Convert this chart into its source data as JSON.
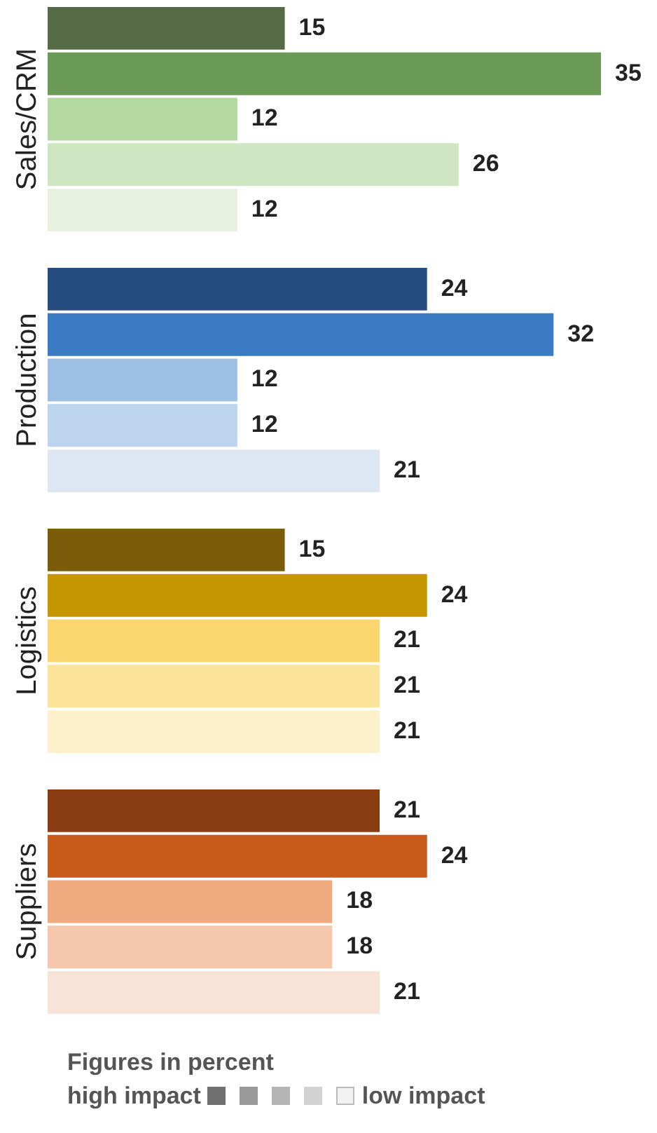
{
  "chart_data": [
    {
      "type": "bar",
      "orientation": "horizontal",
      "ylabel": "Sales/CRM",
      "categories": [
        null,
        null,
        null,
        null,
        null
      ],
      "values": [
        15,
        35,
        12,
        26,
        12
      ],
      "colors": [
        "#556b45",
        "#6a9a55",
        "#b3d8a0",
        "#cfe6c3",
        "#e6f2df"
      ],
      "tick_labels": false,
      "data_labels": true
    },
    {
      "type": "bar",
      "orientation": "horizontal",
      "ylabel": "Production",
      "categories": [
        null,
        null,
        null,
        null,
        null
      ],
      "values": [
        24,
        32,
        12,
        12,
        21
      ],
      "colors": [
        "#264d80",
        "#3b7bc4",
        "#9dbfe3",
        "#bdd4ee",
        "#dde7f3"
      ],
      "tick_labels": false,
      "data_labels": true
    },
    {
      "type": "bar",
      "orientation": "horizontal",
      "ylabel": "Logistics",
      "categories": [
        null,
        null,
        null,
        null,
        null
      ],
      "values": [
        15,
        24,
        21,
        21,
        21
      ],
      "colors": [
        "#7a5c0a",
        "#c59600",
        "#fbd56d",
        "#fce39a",
        "#fdf0cc"
      ],
      "tick_labels": false,
      "data_labels": true
    },
    {
      "type": "bar",
      "orientation": "horizontal",
      "ylabel": "Suppliers",
      "categories": [
        null,
        null,
        null,
        null,
        null
      ],
      "values": [
        21,
        24,
        18,
        18,
        21
      ],
      "colors": [
        "#8a3d12",
        "#c85a1a",
        "#f0aa80",
        "#f5c8ad",
        "#f8e3d7"
      ],
      "tick_labels": false,
      "data_labels": true,
      "annotations": [
        "Figures in percent",
        "high impact",
        "low impact"
      ]
    }
  ]
}
